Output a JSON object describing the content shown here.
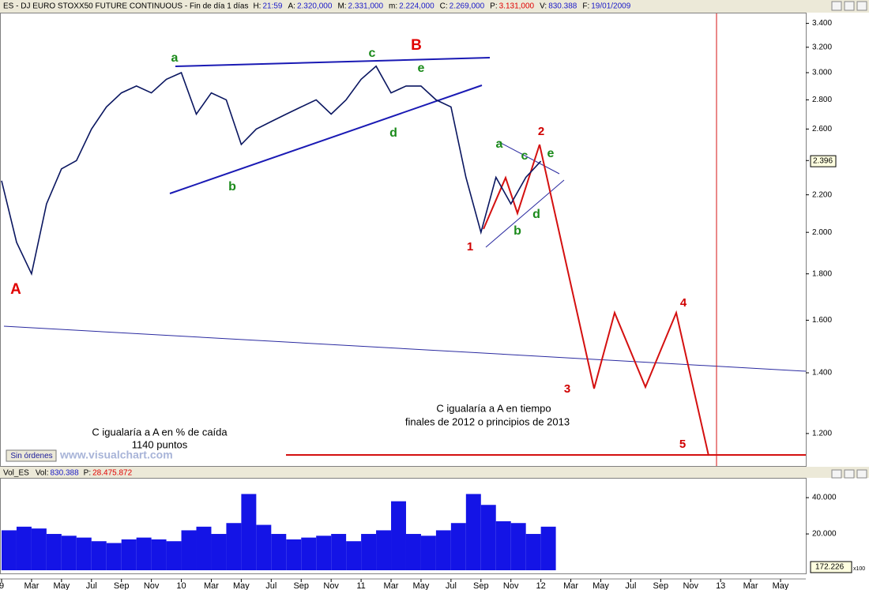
{
  "header": {
    "title": "ES - DJ EURO STOXX50 FUTURE CONTINUOUS - Fin de día 1 días",
    "fields": [
      {
        "k": "H:",
        "v": "21:59"
      },
      {
        "k": "A:",
        "v": "2.320,000"
      },
      {
        "k": "M:",
        "v": "2.331,000"
      },
      {
        "k": "m:",
        "v": "2.224,000"
      },
      {
        "k": "C:",
        "v": "2.269,000"
      },
      {
        "k": "P:",
        "v": "3.131,000",
        "color": "#e00000"
      },
      {
        "k": "V:",
        "v": "830.388"
      },
      {
        "k": "F:",
        "v": "19/01/2009"
      }
    ]
  },
  "orders_button": "Sin órdenes",
  "watermark": "www.visualchart.com",
  "annotations": [
    "A",
    "a",
    "b",
    "c",
    "B",
    "e",
    "d",
    "a",
    "c",
    "e",
    "d",
    "b",
    "1",
    "2",
    "3",
    "4",
    "5",
    "C igualaría a A en % de caída",
    "1140 puntos",
    "C igualaría a A en tiempo",
    "finales de 2012 o principios de 2013"
  ],
  "chart_data": [
    {
      "type": "line",
      "log_scale": true,
      "grid": false,
      "color": "#0a1660",
      "x": [
        "2009-01",
        "2009-02",
        "2009-03",
        "2009-04",
        "2009-05",
        "2009-06",
        "2009-07",
        "2009-08",
        "2009-09",
        "2009-10",
        "2009-11",
        "2009-12",
        "2010-01",
        "2010-02",
        "2010-03",
        "2010-04",
        "2010-05",
        "2010-06",
        "2010-07",
        "2010-08",
        "2010-09",
        "2010-10",
        "2010-11",
        "2010-12",
        "2011-01",
        "2011-02",
        "2011-03",
        "2011-04",
        "2011-05",
        "2011-06",
        "2011-07",
        "2011-08",
        "2011-09",
        "2011-10",
        "2011-11",
        "2011-12",
        "2012-01"
      ],
      "values": [
        2280,
        1950,
        1800,
        2150,
        2350,
        2400,
        2600,
        2750,
        2850,
        2900,
        2850,
        2950,
        3000,
        2700,
        2850,
        2800,
        2500,
        2600,
        2650,
        2700,
        2750,
        2800,
        2700,
        2800,
        2950,
        3050,
        2850,
        2900,
        2900,
        2800,
        2750,
        2300,
        2000,
        2300,
        2150,
        2300,
        2396
      ],
      "xlim": [
        "2009-01",
        "2013-06"
      ],
      "ylim": [
        1105,
        3480
      ],
      "yticks": [
        {
          "value": 1200,
          "label": "1.200"
        },
        {
          "value": 1400,
          "label": "1.400"
        },
        {
          "value": 1600,
          "label": "1.600"
        },
        {
          "value": 1800,
          "label": "1.800"
        },
        {
          "value": 2000,
          "label": "2.000"
        },
        {
          "value": 2200,
          "label": "2.200"
        },
        {
          "value": 2400,
          "label": "2.400"
        },
        {
          "value": 2600,
          "label": "2.600"
        },
        {
          "value": 2800,
          "label": "2.800"
        },
        {
          "value": 3000,
          "label": "3.000"
        },
        {
          "value": 3200,
          "label": "3.200"
        },
        {
          "value": 3400,
          "label": "3.400"
        }
      ],
      "last_price": {
        "value": 2396,
        "label": "2.396"
      }
    },
    {
      "type": "bar",
      "grid": false,
      "color": "#1414e6",
      "subtitle": [
        {
          "k": "Vol_ES",
          "v": ""
        },
        {
          "k": "Vol:",
          "v": "830.388"
        },
        {
          "k": "P:",
          "v": "28.475.872",
          "color": "#e00000"
        }
      ],
      "x": [
        "2009-01",
        "2009-02",
        "2009-03",
        "2009-04",
        "2009-05",
        "2009-06",
        "2009-07",
        "2009-08",
        "2009-09",
        "2009-10",
        "2009-11",
        "2009-12",
        "2010-01",
        "2010-02",
        "2010-03",
        "2010-04",
        "2010-05",
        "2010-06",
        "2010-07",
        "2010-08",
        "2010-09",
        "2010-10",
        "2010-11",
        "2010-12",
        "2011-01",
        "2011-02",
        "2011-03",
        "2011-04",
        "2011-05",
        "2011-06",
        "2011-07",
        "2011-08",
        "2011-09",
        "2011-10",
        "2011-11",
        "2011-12",
        "2012-01"
      ],
      "values": [
        22000,
        24000,
        23000,
        20000,
        19000,
        18000,
        16000,
        15000,
        17000,
        18000,
        17000,
        16000,
        22000,
        24000,
        20000,
        26000,
        42000,
        25000,
        20000,
        17000,
        18000,
        19000,
        20000,
        16000,
        20000,
        22000,
        38000,
        20000,
        19000,
        22000,
        26000,
        42000,
        36000,
        27000,
        26000,
        20000,
        24000
      ],
      "xlim": [
        "2009-01",
        "2013-06"
      ],
      "ylim": [
        0,
        50900
      ],
      "yticks": [
        {
          "value": 20000,
          "label": "20.000"
        },
        {
          "value": 40000,
          "label": "40.000"
        }
      ],
      "xticks": [
        {
          "value": "2009-01",
          "label": "9"
        },
        {
          "value": "2009-03",
          "label": "Mar"
        },
        {
          "value": "2009-05",
          "label": "May"
        },
        {
          "value": "2009-07",
          "label": "Jul"
        },
        {
          "value": "2009-09",
          "label": "Sep"
        },
        {
          "value": "2009-11",
          "label": "Nov"
        },
        {
          "value": "2010-01",
          "label": "10"
        },
        {
          "value": "2010-03",
          "label": "Mar"
        },
        {
          "value": "2010-05",
          "label": "May"
        },
        {
          "value": "2010-07",
          "label": "Jul"
        },
        {
          "value": "2010-09",
          "label": "Sep"
        },
        {
          "value": "2010-11",
          "label": "Nov"
        },
        {
          "value": "2011-01",
          "label": "11"
        },
        {
          "value": "2011-03",
          "label": "Mar"
        },
        {
          "value": "2011-05",
          "label": "May"
        },
        {
          "value": "2011-07",
          "label": "Jul"
        },
        {
          "value": "2011-09",
          "label": "Sep"
        },
        {
          "value": "2011-11",
          "label": "Nov"
        },
        {
          "value": "2012-01",
          "label": "12"
        },
        {
          "value": "2012-03",
          "label": "Mar"
        },
        {
          "value": "2012-05",
          "label": "May"
        },
        {
          "value": "2012-07",
          "label": "Jul"
        },
        {
          "value": "2012-09",
          "label": "Sep"
        },
        {
          "value": "2012-11",
          "label": "Nov"
        },
        {
          "value": "2013-01",
          "label": "13"
        },
        {
          "value": "2013-03",
          "label": "Mar"
        },
        {
          "value": "2013-05",
          "label": "May"
        }
      ],
      "badge": "172.226",
      "badge_unit": "x100"
    }
  ]
}
